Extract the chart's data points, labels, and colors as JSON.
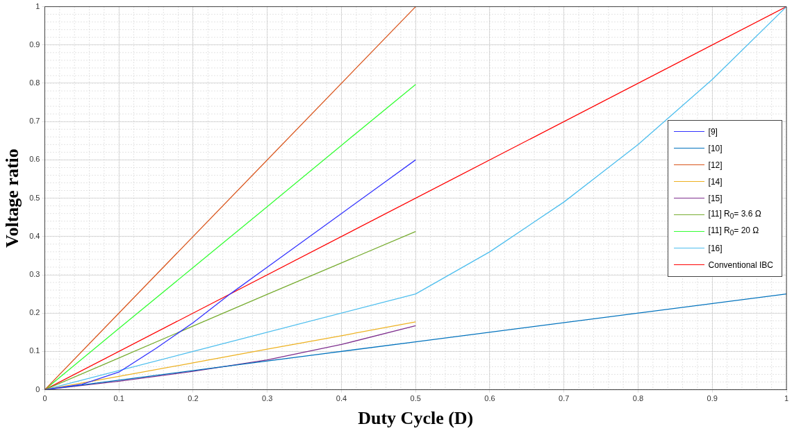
{
  "chart_data": {
    "type": "line",
    "xlabel": "Duty Cycle (D)",
    "ylabel": "Voltage ratio",
    "xlim": [
      0,
      1
    ],
    "ylim": [
      0,
      1
    ],
    "xticks": [
      0,
      0.1,
      0.2,
      0.3,
      0.4,
      0.5,
      0.6,
      0.7,
      0.8,
      0.9,
      1
    ],
    "yticks": [
      0,
      0.1,
      0.2,
      0.3,
      0.4,
      0.5,
      0.6,
      0.7,
      0.8,
      0.9,
      1
    ],
    "grid": true,
    "legend": "right",
    "marker": "none",
    "line_style": "solid",
    "series": [
      {
        "name": "[9]",
        "color": "#3333ff",
        "x": [
          0,
          0.05,
          0.1,
          0.15,
          0.2,
          0.25,
          0.3,
          0.4,
          0.5
        ],
        "values": [
          0,
          0.014,
          0.046,
          0.108,
          0.175,
          0.25,
          0.32,
          0.46,
          0.6
        ]
      },
      {
        "name": "[10]",
        "color": "#0072bd",
        "x": [
          0,
          0.5,
          1
        ],
        "values": [
          0,
          0.125,
          0.25
        ]
      },
      {
        "name": "[12]",
        "color": "#d95319",
        "x": [
          0,
          0.5
        ],
        "values": [
          0,
          1
        ]
      },
      {
        "name": "[14]",
        "color": "#edb120",
        "x": [
          0,
          0.1,
          0.2,
          0.3,
          0.4,
          0.5
        ],
        "values": [
          0,
          0.035,
          0.07,
          0.106,
          0.141,
          0.177
        ]
      },
      {
        "name": "[15]",
        "color": "#7e2f8e",
        "x": [
          0,
          0.1,
          0.2,
          0.3,
          0.4,
          0.5
        ],
        "values": [
          0,
          0.022,
          0.048,
          0.078,
          0.118,
          0.167
        ]
      },
      {
        "name": "[11] R$_{0}$= 3.6 Ω",
        "color": "#77ac30",
        "x": [
          0,
          0.1,
          0.2,
          0.3,
          0.4,
          0.5
        ],
        "values": [
          0,
          0.083,
          0.166,
          0.249,
          0.331,
          0.413
        ]
      },
      {
        "name": "[11] R$_{0}$= 20 Ω",
        "color": "#33ff33",
        "x": [
          0,
          0.1,
          0.2,
          0.3,
          0.4,
          0.5
        ],
        "values": [
          0,
          0.16,
          0.319,
          0.478,
          0.638,
          0.797
        ]
      },
      {
        "name": "[16]",
        "color": "#4dbeee",
        "x": [
          0,
          0.5,
          0.6,
          0.7,
          0.8,
          0.9,
          1
        ],
        "values": [
          0,
          0.25,
          0.36,
          0.49,
          0.64,
          0.81,
          1
        ]
      },
      {
        "name": "Conventional IBC",
        "color": "#ff0000",
        "x": [
          0,
          1
        ],
        "values": [
          0,
          1
        ]
      }
    ]
  }
}
